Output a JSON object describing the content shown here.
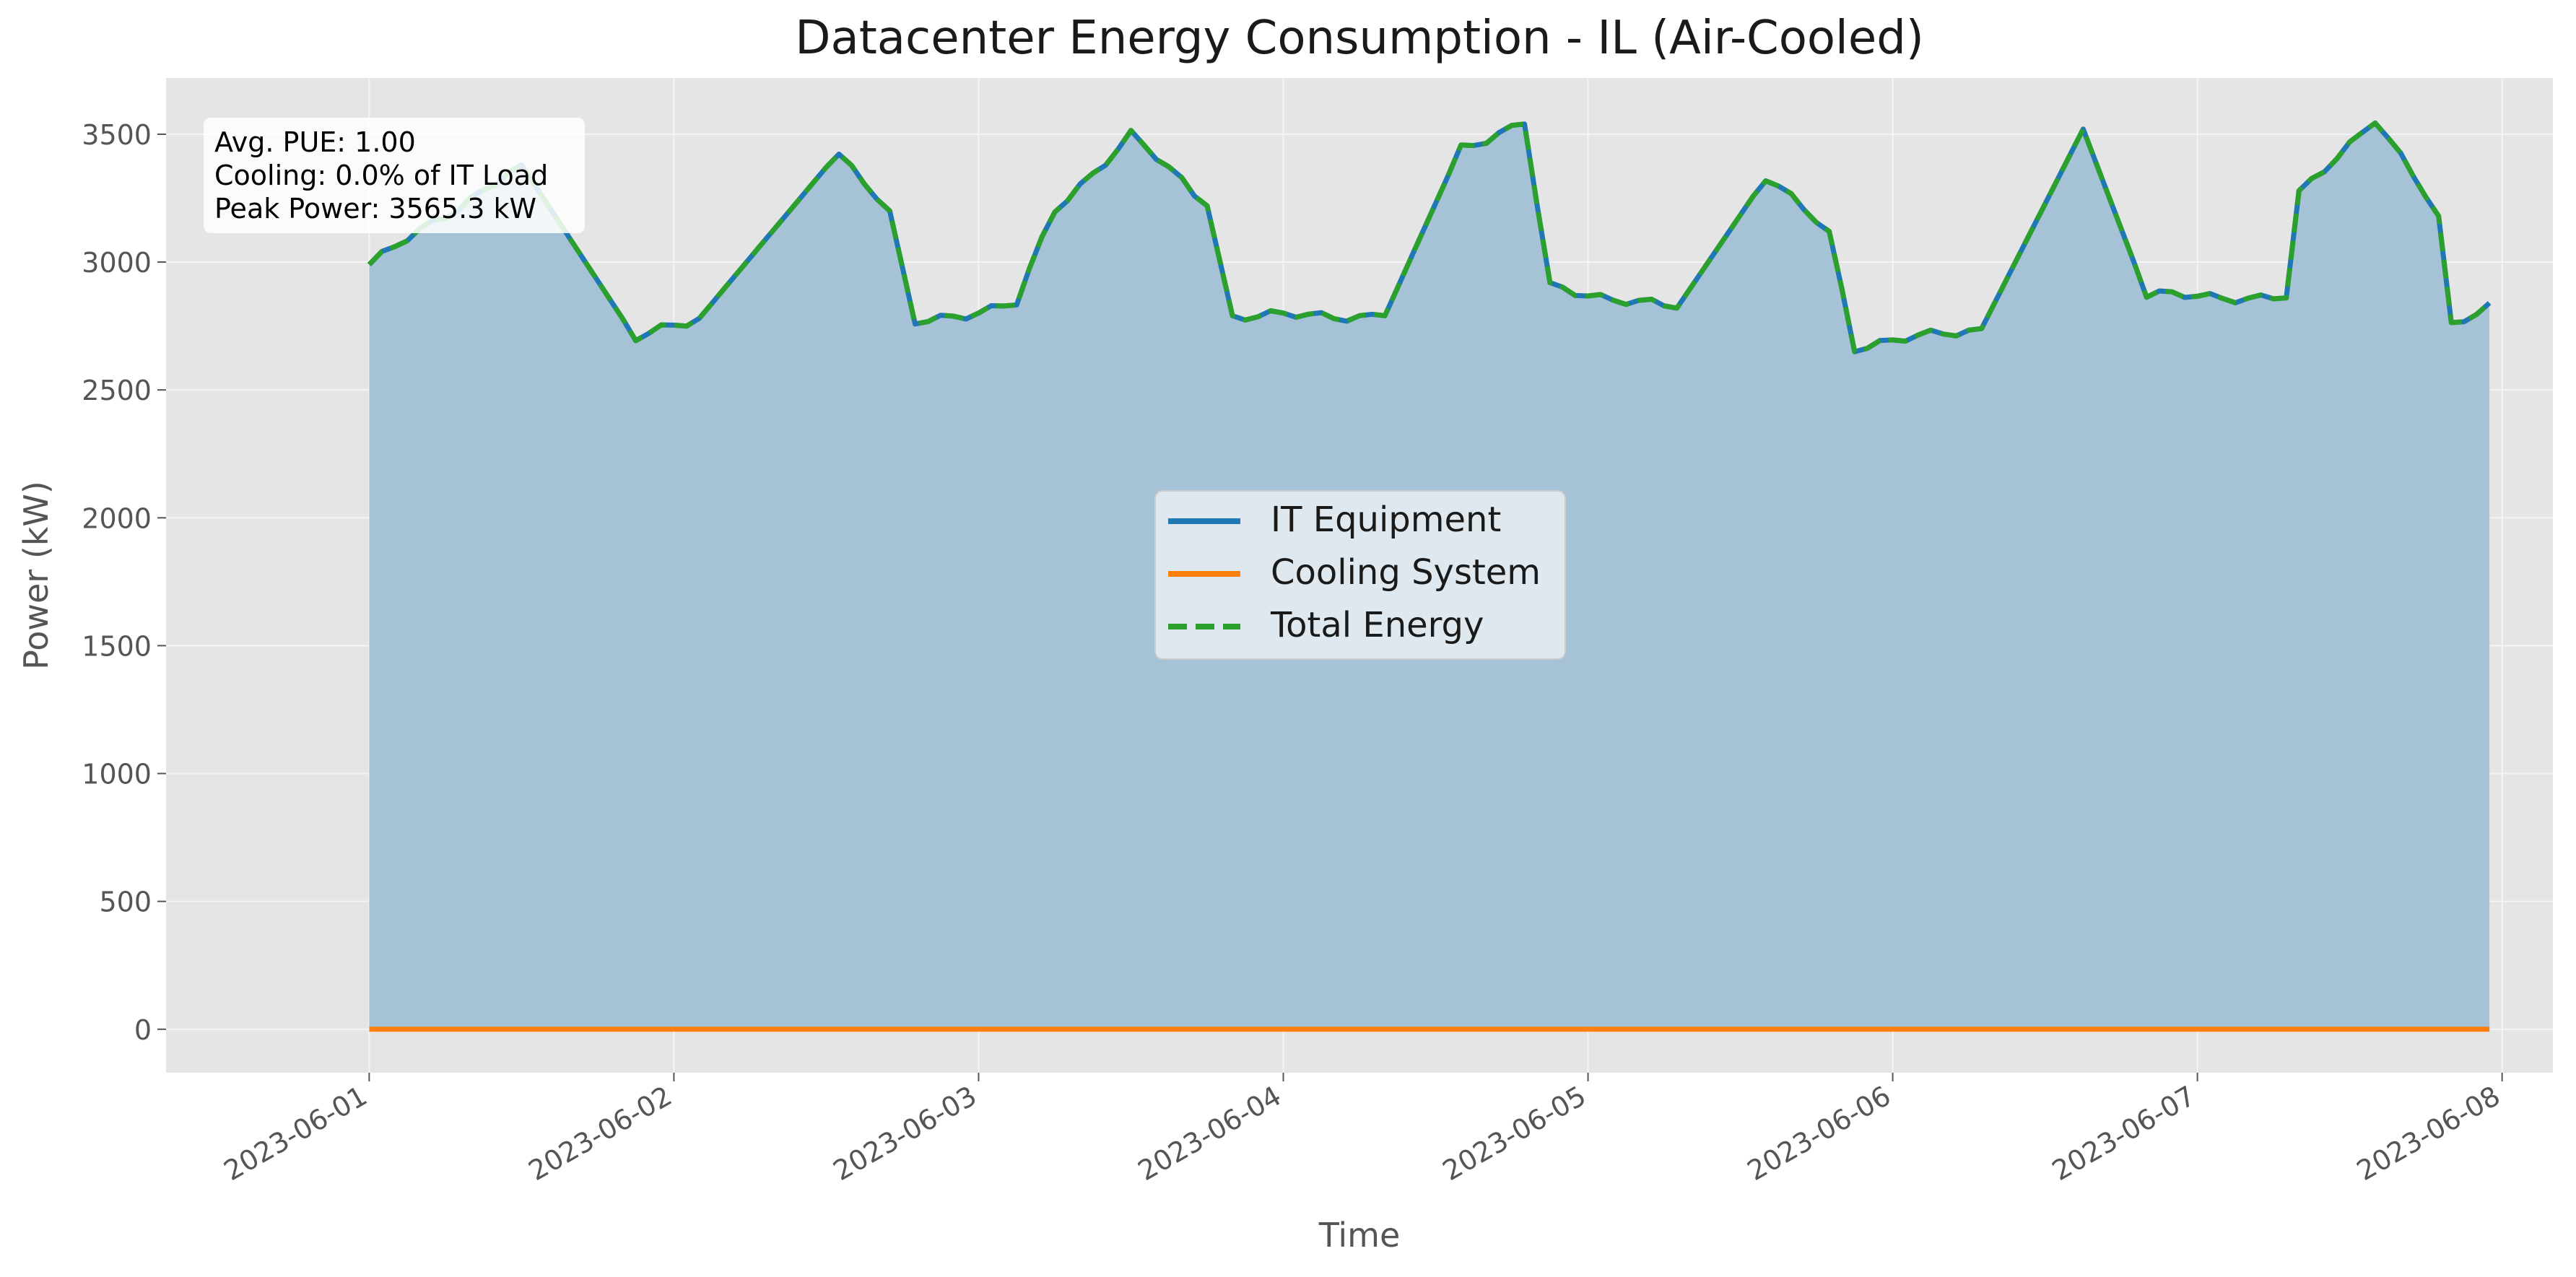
{
  "chart_data": {
    "type": "area",
    "title": "Datacenter Energy Consumption - IL (Air-Cooled)",
    "xlabel": "Time",
    "ylabel": "Power (kW)",
    "xlim": [
      "2023-05-31 08:00",
      "2023-06-08 04:00"
    ],
    "ylim": [
      -170,
      3720
    ],
    "y_ticks": [
      0,
      500,
      1000,
      1500,
      2000,
      2500,
      3000,
      3500
    ],
    "x_ticks": [
      "2023-06-01",
      "2023-06-02",
      "2023-06-03",
      "2023-06-04",
      "2023-06-05",
      "2023-06-06",
      "2023-06-07",
      "2023-06-08"
    ],
    "grid": true,
    "legend_position": "center",
    "annotation": {
      "lines": [
        "Avg. PUE: 1.00",
        "Cooling: 0.0% of IT Load",
        "Peak Power: 3565.3 kW"
      ],
      "position": "top-left"
    },
    "series": [
      {
        "name": "IT Equipment",
        "style": "solid",
        "color": "#1f77b4",
        "filled": true,
        "x": [
          "2023-06-01 00:00",
          "2023-06-01 12:00",
          "2023-06-01 21:00",
          "2023-06-02 02:00",
          "2023-06-02 13:00",
          "2023-06-02 17:00",
          "2023-06-02 19:00",
          "2023-06-03 03:00",
          "2023-06-03 06:00",
          "2023-06-03 12:00",
          "2023-06-03 18:00",
          "2023-06-03 20:00",
          "2023-06-04 08:00",
          "2023-06-04 14:00",
          "2023-06-04 19:00",
          "2023-06-04 21:00",
          "2023-06-05 07:00",
          "2023-06-05 14:00",
          "2023-06-05 19:00",
          "2023-06-05 21:00",
          "2023-06-06 07:00",
          "2023-06-06 15:00",
          "2023-06-06 20:00",
          "2023-06-07 07:00",
          "2023-06-07 08:00",
          "2023-06-07 14:00",
          "2023-06-07 19:00",
          "2023-06-07 20:00",
          "2023-06-07 23:00"
        ],
        "y": [
          2990,
          3380,
          2700,
          2780,
          3430,
          3200,
          2760,
          2840,
          3200,
          3500,
          3220,
          2790,
          2790,
          3450,
          3540,
          2900,
          2820,
          3330,
          3120,
          2670,
          2740,
          3520,
          2870,
          2860,
          3260,
          3565.3,
          3180,
          2750,
          2840
        ]
      },
      {
        "name": "Cooling System",
        "style": "solid",
        "color": "#ff7f0e",
        "filled": false,
        "x": [
          "2023-06-01 00:00",
          "2023-06-07 23:00"
        ],
        "y": [
          0,
          0
        ]
      },
      {
        "name": "Total Energy",
        "style": "dashed",
        "color": "#2ca02c",
        "filled": false,
        "x": [
          "2023-06-01 00:00",
          "2023-06-01 12:00",
          "2023-06-01 21:00",
          "2023-06-02 02:00",
          "2023-06-02 13:00",
          "2023-06-02 17:00",
          "2023-06-02 19:00",
          "2023-06-03 03:00",
          "2023-06-03 06:00",
          "2023-06-03 12:00",
          "2023-06-03 18:00",
          "2023-06-03 20:00",
          "2023-06-04 08:00",
          "2023-06-04 14:00",
          "2023-06-04 19:00",
          "2023-06-04 21:00",
          "2023-06-05 07:00",
          "2023-06-05 14:00",
          "2023-06-05 19:00",
          "2023-06-05 21:00",
          "2023-06-06 07:00",
          "2023-06-06 15:00",
          "2023-06-06 20:00",
          "2023-06-07 07:00",
          "2023-06-07 08:00",
          "2023-06-07 14:00",
          "2023-06-07 19:00",
          "2023-06-07 20:00",
          "2023-06-07 23:00"
        ],
        "y": [
          2990,
          3380,
          2700,
          2780,
          3430,
          3200,
          2760,
          2840,
          3200,
          3500,
          3220,
          2790,
          2790,
          3450,
          3540,
          2900,
          2820,
          3330,
          3120,
          2670,
          2740,
          3520,
          2870,
          2860,
          3260,
          3565.3,
          3180,
          2750,
          2840
        ]
      }
    ]
  },
  "colors": {
    "plot_background": "#e5e5e5",
    "area_fill": "#a6c2d6",
    "grid": "#f2f2f2",
    "text": "#555555"
  }
}
